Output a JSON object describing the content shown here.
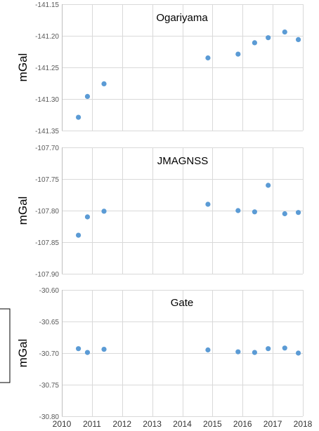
{
  "chart_data": [
    {
      "type": "scatter",
      "title": "Ogariyama",
      "ylabel": "mGal",
      "xlim": [
        2010,
        2018
      ],
      "ylim": [
        -141.35,
        -141.15
      ],
      "yticks": [
        "-141.15",
        "-141.20",
        "-141.25",
        "-141.30",
        "-141.35"
      ],
      "grid": true,
      "color": "#5B9BD5",
      "x": [
        2010.55,
        2010.85,
        2011.4,
        2014.85,
        2015.85,
        2016.4,
        2016.85,
        2017.4,
        2017.85
      ],
      "y": [
        -141.329,
        -141.296,
        -141.276,
        -141.235,
        -141.229,
        -141.211,
        -141.203,
        -141.194,
        -141.206
      ]
    },
    {
      "type": "scatter",
      "title": "JMAGNSS",
      "ylabel": "mGal",
      "xlim": [
        2010,
        2018
      ],
      "ylim": [
        -107.9,
        -107.7
      ],
      "yticks": [
        "-107.70",
        "-107.75",
        "-107.80",
        "-107.85",
        "-107.90"
      ],
      "grid": true,
      "color": "#5B9BD5",
      "x": [
        2010.55,
        2010.85,
        2011.4,
        2014.85,
        2015.85,
        2016.4,
        2016.85,
        2017.4,
        2017.85
      ],
      "y": [
        -107.839,
        -107.81,
        -107.801,
        -107.79,
        -107.8,
        -107.802,
        -107.76,
        -107.805,
        -107.803
      ]
    },
    {
      "type": "scatter",
      "title": "Gate",
      "ylabel": "mGal",
      "xlim": [
        2010,
        2018
      ],
      "ylim": [
        -30.8,
        -30.6
      ],
      "yticks": [
        "-30.60",
        "-30.65",
        "-30.70",
        "-30.75",
        "-30.80"
      ],
      "grid": true,
      "color": "#5B9BD5",
      "x": [
        2010.55,
        2010.85,
        2011.4,
        2014.85,
        2015.85,
        2016.4,
        2016.85,
        2017.4,
        2017.85
      ],
      "y": [
        -30.693,
        -30.699,
        -30.694,
        -30.695,
        -30.698,
        -30.699,
        -30.693,
        -30.692,
        -30.7
      ]
    }
  ],
  "x_tick_labels": [
    "2010",
    "2011",
    "2012",
    "2013",
    "2014",
    "2015",
    "2016",
    "2017",
    "2018"
  ],
  "colors": {
    "grid": "#D9D9D9",
    "axis": "#BFBFBF",
    "marker": "#5B9BD5"
  }
}
